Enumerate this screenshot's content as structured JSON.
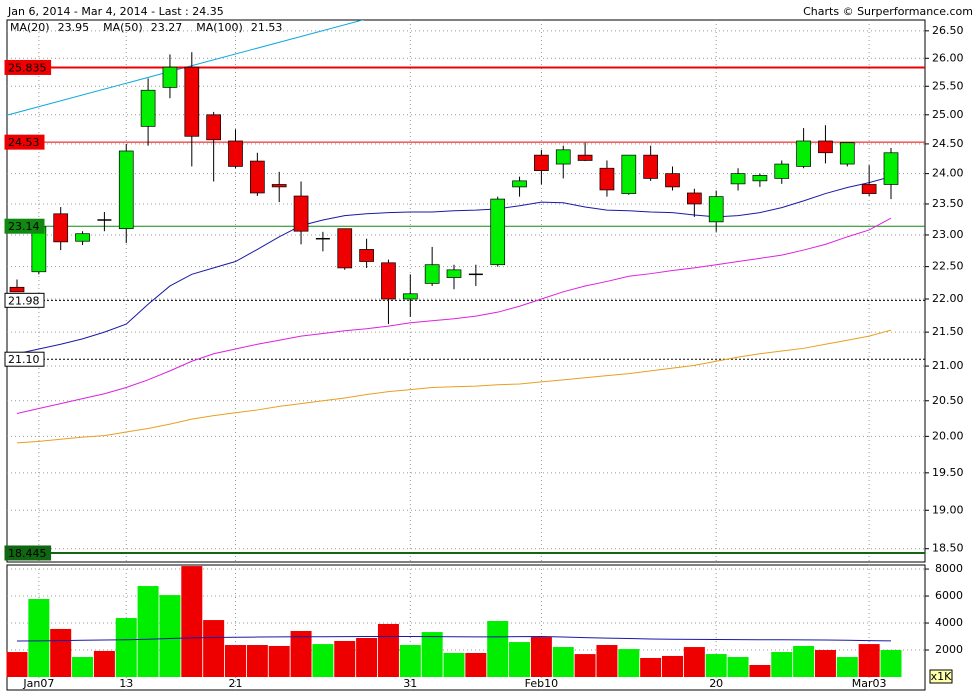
{
  "chart_data": {
    "type": "candlestick",
    "title": "Jan 6, 2014 - Mar 4, 2014 - Last : 24.35",
    "source": "Charts © Surperformance.com",
    "categories": [
      null,
      "Jan07",
      null,
      null,
      null,
      "13",
      null,
      null,
      null,
      null,
      "21",
      null,
      null,
      null,
      null,
      null,
      null,
      null,
      "31",
      null,
      null,
      null,
      null,
      null,
      "Feb10",
      null,
      null,
      null,
      null,
      null,
      null,
      null,
      "20",
      null,
      null,
      null,
      null,
      null,
      null,
      "Mar03",
      null
    ],
    "open": [
      22.18,
      22.42,
      23.34,
      22.9,
      23.24,
      23.1,
      24.8,
      25.48,
      25.84,
      25.0,
      24.55,
      24.21,
      23.82,
      23.63,
      22.94,
      23.1,
      22.77,
      22.56,
      22.0,
      22.24,
      22.33,
      22.38,
      22.53,
      23.78,
      24.31,
      24.16,
      24.31,
      24.09,
      23.67,
      24.31,
      24.0,
      23.68,
      23.21,
      23.83,
      23.88,
      23.92,
      24.12,
      24.55,
      24.16,
      23.82,
      23.82
    ],
    "high": [
      22.3,
      23.16,
      23.45,
      23.06,
      23.37,
      24.5,
      25.64,
      26.07,
      26.11,
      25.05,
      24.75,
      24.35,
      24.03,
      23.87,
      23.05,
      23.1,
      22.94,
      22.61,
      22.38,
      22.81,
      22.53,
      22.53,
      23.62,
      23.95,
      24.4,
      24.47,
      24.52,
      24.22,
      24.31,
      24.47,
      24.12,
      23.75,
      23.72,
      24.09,
      24.0,
      24.22,
      24.77,
      24.82,
      24.52,
      24.14,
      24.43
    ],
    "low": [
      22.11,
      22.38,
      22.76,
      22.84,
      23.06,
      22.87,
      24.47,
      25.29,
      24.12,
      23.87,
      24.09,
      23.63,
      23.53,
      22.85,
      22.74,
      22.45,
      22.48,
      21.62,
      21.73,
      22.2,
      22.15,
      22.2,
      22.5,
      23.62,
      23.82,
      23.92,
      24.21,
      23.62,
      23.65,
      23.88,
      23.72,
      23.29,
      23.05,
      23.72,
      23.78,
      23.83,
      24.09,
      24.17,
      24.12,
      23.63,
      23.58
    ],
    "close": [
      22.11,
      23.13,
      22.89,
      23.02,
      23.24,
      24.38,
      25.43,
      25.84,
      24.63,
      24.57,
      24.12,
      23.68,
      23.78,
      23.06,
      22.94,
      22.48,
      22.58,
      22.0,
      22.08,
      22.53,
      22.45,
      22.38,
      23.58,
      23.88,
      24.05,
      24.4,
      24.22,
      23.73,
      24.31,
      23.92,
      23.78,
      23.5,
      23.62,
      24.0,
      23.97,
      24.16,
      24.55,
      24.35,
      24.52,
      23.67,
      24.35
    ],
    "up_color": "#00ee00",
    "down_color": "#ee0000",
    "log_scale": true,
    "grid": true,
    "ylim": [
      18.33,
      26.7
    ],
    "yticks": [
      {
        "value": 18.5,
        "label": "18.50"
      },
      {
        "value": 19,
        "label": "19.00"
      },
      {
        "value": 19.5,
        "label": "19.50"
      },
      {
        "value": 20,
        "label": "20.00"
      },
      {
        "value": 20.5,
        "label": "20.50"
      },
      {
        "value": 21,
        "label": "21.00"
      },
      {
        "value": 21.5,
        "label": "21.50"
      },
      {
        "value": 22,
        "label": "22.00"
      },
      {
        "value": 22.5,
        "label": "22.50"
      },
      {
        "value": 23,
        "label": "23.00"
      },
      {
        "value": 23.5,
        "label": "23.50"
      },
      {
        "value": 24,
        "label": "24.00"
      },
      {
        "value": 24.5,
        "label": "24.50"
      },
      {
        "value": 25,
        "label": "25.00"
      },
      {
        "value": 25.5,
        "label": "25.50"
      },
      {
        "value": 26,
        "label": "26.00"
      },
      {
        "value": 26.5,
        "label": "26.50"
      }
    ],
    "levels": [
      {
        "value": 25.835,
        "color": "#ee0000",
        "width": 2,
        "dashed": false,
        "text_color": "#ffffff"
      },
      {
        "value": 24.53,
        "color": "#ee0000",
        "width": 1,
        "dashed": false,
        "text_color": "#ffffff"
      },
      {
        "value": 23.14,
        "color": "#118811",
        "width": 1,
        "dashed": false,
        "text_color": "#ffffff"
      },
      {
        "value": {
          "value": 21.98,
          "label": "21.98"
        },
        "color": "#000000",
        "width": 1,
        "dashed": true,
        "text_color": "#000000"
      },
      {
        "value": {
          "value": 21.1,
          "label": "21.10"
        },
        "color": "#000000",
        "width": 1,
        "dashed": true,
        "text_color": "#000000"
      },
      {
        "value": 18.445,
        "color": "#116611",
        "width": 2,
        "dashed": false,
        "text_color": "#ffffff"
      }
    ],
    "series": [
      {
        "name": "MA(20)",
        "color": "#1a1aa6",
        "values": [
          21.18,
          21.25,
          21.32,
          21.4,
          21.5,
          21.62,
          21.92,
          22.2,
          22.38,
          22.48,
          22.58,
          22.77,
          22.97,
          23.15,
          23.24,
          23.31,
          23.34,
          23.36,
          23.37,
          23.37,
          23.39,
          23.4,
          23.42,
          23.47,
          23.53,
          23.52,
          23.45,
          23.4,
          23.39,
          23.37,
          23.36,
          23.32,
          23.29,
          23.31,
          23.36,
          23.44,
          23.55,
          23.67,
          23.77,
          23.85,
          23.95
        ]
      },
      {
        "name": "MA(50)",
        "color": "#dd22dd",
        "values": [
          20.32,
          20.39,
          20.46,
          20.53,
          20.6,
          20.69,
          20.8,
          20.93,
          21.07,
          21.18,
          21.25,
          21.32,
          21.38,
          21.44,
          21.48,
          21.52,
          21.55,
          21.59,
          21.64,
          21.67,
          21.7,
          21.74,
          21.8,
          21.89,
          22.0,
          22.11,
          22.2,
          22.27,
          22.35,
          22.39,
          22.44,
          22.48,
          22.53,
          22.58,
          22.63,
          22.68,
          22.76,
          22.85,
          22.97,
          23.08,
          23.27
        ]
      },
      {
        "name": "MA(100)",
        "color": "#e8a020",
        "values": [
          19.91,
          19.93,
          19.96,
          19.99,
          20.01,
          20.06,
          20.11,
          20.17,
          20.24,
          20.29,
          20.33,
          20.37,
          20.42,
          20.46,
          20.5,
          20.54,
          20.59,
          20.63,
          20.66,
          20.69,
          20.7,
          20.71,
          20.73,
          20.74,
          20.77,
          20.8,
          20.83,
          20.86,
          20.89,
          20.93,
          20.97,
          21.01,
          21.07,
          21.13,
          21.18,
          21.22,
          21.26,
          21.32,
          21.38,
          21.44,
          21.53
        ]
      }
    ],
    "trendline": {
      "color": "#11aadd",
      "x": [
        0,
        16
      ],
      "values": [
        25.04,
        26.72
      ]
    },
    "volume": {
      "values": [
        1850,
        5780,
        3560,
        1480,
        1930,
        4370,
        6740,
        6070,
        8220,
        4220,
        2370,
        2370,
        2300,
        3410,
        2440,
        2670,
        2890,
        3930,
        2370,
        3330,
        1780,
        1780,
        4150,
        2590,
        2960,
        2220,
        1700,
        2370,
        2070,
        1410,
        1560,
        2220,
        1700,
        1480,
        890,
        1850,
        2300,
        2000,
        1480,
        2440,
        2000
      ],
      "colors": [
        "#ee0000",
        "#00ee00",
        "#ee0000",
        "#00ee00",
        "#ee0000",
        "#00ee00",
        "#00ee00",
        "#00ee00",
        "#ee0000",
        "#ee0000",
        "#ee0000",
        "#ee0000",
        "#ee0000",
        "#ee0000",
        "#00ee00",
        "#ee0000",
        "#ee0000",
        "#ee0000",
        "#00ee00",
        "#00ee00",
        "#00ee00",
        "#ee0000",
        "#00ee00",
        "#00ee00",
        "#ee0000",
        "#00ee00",
        "#ee0000",
        "#ee0000",
        "#00ee00",
        "#ee0000",
        "#ee0000",
        "#ee0000",
        "#00ee00",
        "#00ee00",
        "#ee0000",
        "#00ee00",
        "#00ee00",
        "#ee0000",
        "#00ee00",
        "#ee0000",
        "#00ee00"
      ],
      "ma": {
        "color": "#1a1aa6",
        "values": [
          2670,
          2680,
          2700,
          2720,
          2740,
          2760,
          2800,
          2850,
          2900,
          2930,
          2950,
          2960,
          2970,
          2980,
          2980,
          2990,
          3000,
          3000,
          3000,
          2990,
          2980,
          2970,
          2970,
          2990,
          3000,
          2960,
          2920,
          2880,
          2850,
          2820,
          2800,
          2790,
          2780,
          2770,
          2760,
          2760,
          2750,
          2740,
          2720,
          2700,
          2680
        ]
      },
      "ylim": [
        0,
        8300
      ],
      "yticks": [
        2000,
        4000,
        6000,
        8000
      ],
      "unit_label": "x1K"
    }
  }
}
